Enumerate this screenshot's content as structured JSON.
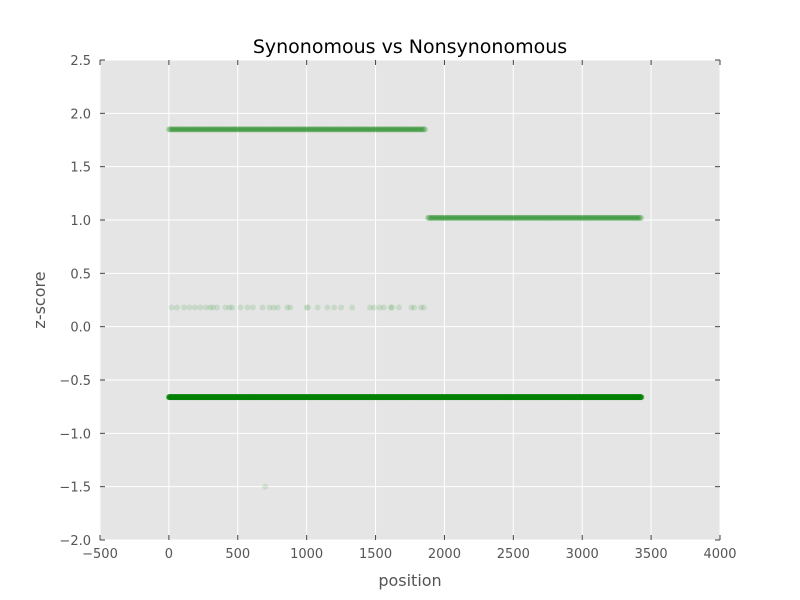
{
  "chart_data": {
    "type": "scatter",
    "title": "Synonomous vs Nonsynonomous",
    "xlabel": "position",
    "ylabel": "z-score",
    "xlim": [
      -500,
      4000
    ],
    "ylim": [
      -2.0,
      2.5
    ],
    "xticks": [
      -500,
      0,
      500,
      1000,
      1500,
      2000,
      2500,
      3000,
      3500,
      4000
    ],
    "xtick_labels": [
      "−500",
      "0",
      "500",
      "1000",
      "1500",
      "2000",
      "2500",
      "3000",
      "3500",
      "4000"
    ],
    "yticks": [
      -2.0,
      -1.5,
      -1.0,
      -0.5,
      0.0,
      0.5,
      1.0,
      1.5,
      2.0,
      2.5
    ],
    "ytick_labels": [
      "−2.0",
      "−1.5",
      "−1.0",
      "−0.5",
      "0.0",
      "0.5",
      "1.0",
      "1.5",
      "2.0",
      "2.5"
    ],
    "grid": true,
    "background": "#e5e5e5",
    "grid_color": "#ffffff",
    "marker_color": "#008000",
    "series": [
      {
        "y": 1.85,
        "x_start": 0,
        "x_end": 1860,
        "step": 6,
        "alpha": 0.15
      },
      {
        "y": 1.02,
        "x_start": 1880,
        "x_end": 3430,
        "step": 6,
        "alpha": 0.15
      },
      {
        "y": 0.18,
        "x": [
          20,
          60,
          110,
          150,
          190,
          230,
          270,
          300,
          320,
          350,
          410,
          440,
          460,
          520,
          570,
          610,
          680,
          730,
          760,
          790,
          860,
          880,
          1000,
          1010,
          1080,
          1150,
          1200,
          1250,
          1330,
          1460,
          1490,
          1530,
          1560,
          1610,
          1620,
          1670,
          1760,
          1780,
          1830,
          1850
        ],
        "alpha": 0.12
      },
      {
        "y": -0.66,
        "x_start": 0,
        "x_end": 3430,
        "step": 3,
        "alpha": 0.4
      },
      {
        "y": -1.5,
        "x": [
          700
        ],
        "alpha": 0.12
      }
    ]
  }
}
